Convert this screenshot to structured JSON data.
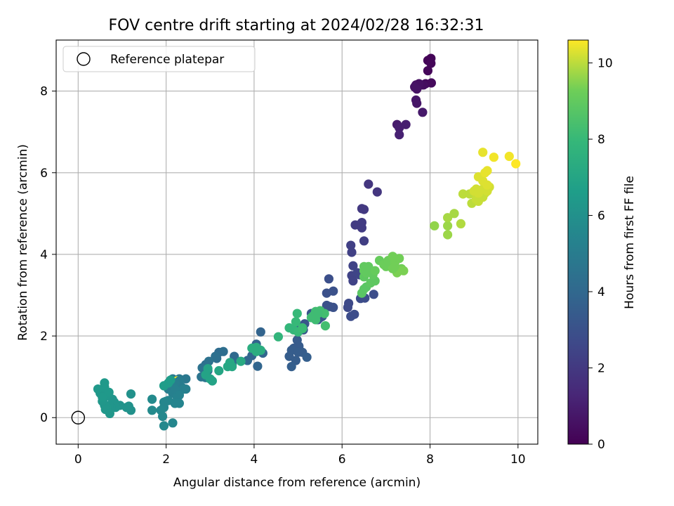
{
  "chart_data": {
    "type": "scatter",
    "title": "FOV centre drift starting at 2024/02/28 16:32:31",
    "xlabel": "Angular distance from reference (arcmin)",
    "ylabel": "Rotation from reference (arcmin)",
    "xlim": [
      -0.5,
      10.45
    ],
    "ylim": [
      -0.65,
      9.25
    ],
    "xticks": [
      0,
      2,
      4,
      6,
      8,
      10
    ],
    "yticks": [
      0,
      2,
      4,
      6,
      8
    ],
    "grid": true,
    "legend": {
      "location": "upper-left",
      "entries": [
        "Reference platepar"
      ]
    },
    "reference_point": {
      "x": 0,
      "y": 0,
      "label": "Reference platepar",
      "marker": "hollow-circle"
    },
    "colorbar": {
      "label": "Hours from first FF file",
      "colormap": "viridis",
      "range": [
        0,
        10.6
      ],
      "ticks": [
        0,
        2,
        4,
        6,
        8,
        10
      ]
    },
    "series": [
      {
        "points": [
          [
            7.95,
            8.75
          ],
          [
            8.02,
            8.8
          ],
          [
            8.02,
            8.68
          ],
          [
            7.95,
            8.5
          ],
          [
            7.9,
            8.18
          ],
          [
            8.03,
            8.2
          ],
          [
            7.85,
            8.15
          ],
          [
            7.8,
            8.15
          ],
          [
            7.75,
            8.18
          ],
          [
            7.68,
            8.15
          ],
          [
            7.65,
            8.1
          ],
          [
            7.7,
            8.05
          ],
          [
            7.68,
            7.78
          ],
          [
            7.7,
            7.7
          ],
          [
            7.83,
            7.48
          ],
          [
            7.25,
            7.18
          ],
          [
            7.3,
            7.1
          ],
          [
            7.45,
            7.18
          ],
          [
            7.3,
            6.93
          ],
          [
            6.6,
            5.72
          ],
          [
            6.8,
            5.53
          ],
          [
            6.45,
            5.12
          ],
          [
            6.5,
            5.1
          ],
          [
            6.3,
            4.72
          ],
          [
            6.45,
            4.65
          ],
          [
            6.45,
            4.78
          ],
          [
            6.5,
            4.33
          ],
          [
            6.2,
            4.22
          ],
          [
            6.22,
            4.05
          ],
          [
            6.25,
            3.72
          ],
          [
            6.22,
            3.48
          ],
          [
            6.25,
            3.35
          ],
          [
            6.35,
            3.55
          ],
          [
            6.4,
            3.5
          ],
          [
            5.7,
            3.4
          ],
          [
            5.65,
            3.05
          ],
          [
            5.8,
            3.1
          ],
          [
            5.65,
            2.75
          ],
          [
            5.72,
            2.72
          ],
          [
            5.8,
            2.7
          ],
          [
            6.15,
            2.8
          ],
          [
            6.13,
            2.7
          ],
          [
            6.2,
            2.48
          ],
          [
            6.28,
            2.53
          ],
          [
            6.42,
            2.92
          ],
          [
            6.52,
            2.93
          ],
          [
            6.72,
            3.02
          ],
          [
            5.45,
            2.4
          ],
          [
            5.55,
            2.48
          ],
          [
            5.3,
            2.55
          ],
          [
            5.5,
            2.45
          ],
          [
            5.35,
            2.45
          ],
          [
            5.15,
            2.3
          ],
          [
            5.05,
            2.2
          ],
          [
            5.12,
            2.15
          ],
          [
            4.98,
            1.9
          ],
          [
            5.02,
            1.75
          ],
          [
            4.9,
            1.7
          ],
          [
            4.85,
            1.65
          ],
          [
            5.0,
            1.6
          ],
          [
            5.1,
            1.6
          ],
          [
            4.8,
            1.5
          ],
          [
            4.95,
            1.4
          ],
          [
            5.2,
            1.48
          ],
          [
            4.85,
            1.25
          ],
          [
            4.15,
            2.1
          ],
          [
            4.05,
            1.8
          ],
          [
            4.0,
            1.62
          ],
          [
            4.2,
            1.58
          ],
          [
            3.95,
            1.52
          ],
          [
            4.08,
            1.26
          ],
          [
            3.85,
            1.4
          ],
          [
            3.55,
            1.5
          ],
          [
            3.5,
            1.35
          ],
          [
            3.5,
            1.3
          ],
          [
            3.2,
            1.6
          ],
          [
            3.3,
            1.62
          ],
          [
            3.15,
            1.45
          ],
          [
            3.12,
            1.5
          ],
          [
            2.9,
            1.3
          ],
          [
            2.97,
            1.38
          ],
          [
            2.82,
            1.22
          ],
          [
            2.95,
            1.15
          ],
          [
            2.8,
            1.0
          ],
          [
            2.9,
            0.98
          ],
          [
            2.45,
            0.95
          ],
          [
            2.3,
            0.95
          ],
          [
            2.15,
            0.95
          ],
          [
            2.25,
            0.9
          ]
        ],
        "hours": [
          0.1,
          0.1,
          0.2,
          0.2,
          0.3,
          0.3,
          0.4,
          0.4,
          0.5,
          0.5,
          0.6,
          0.6,
          0.7,
          0.7,
          0.8,
          0.9,
          1.0,
          1.0,
          1.1,
          1.9,
          1.9,
          2.0,
          2.0,
          2.1,
          2.1,
          2.1,
          2.2,
          2.3,
          2.3,
          2.4,
          2.4,
          2.4,
          2.5,
          2.5,
          2.9,
          3.0,
          3.0,
          3.0,
          3.0,
          3.0,
          2.7,
          2.7,
          2.8,
          2.8,
          2.8,
          2.8,
          2.8,
          3.1,
          3.1,
          3.1,
          3.1,
          3.1,
          3.2,
          3.2,
          3.2,
          3.4,
          3.4,
          3.4,
          3.5,
          3.5,
          3.5,
          3.5,
          3.5,
          3.6,
          3.6,
          3.8,
          3.8,
          3.8,
          3.9,
          3.9,
          3.9,
          4.0,
          4.1,
          4.1,
          4.2,
          4.2,
          4.3,
          4.3,
          4.4,
          4.4,
          4.5,
          4.5,
          4.6,
          4.6,
          4.7,
          4.8,
          4.8,
          4.9
        ]
      },
      {
        "points": [
          [
            2.3,
            0.9
          ],
          [
            2.35,
            0.75
          ],
          [
            2.2,
            0.85
          ],
          [
            2.1,
            0.8
          ],
          [
            2.05,
            0.7
          ],
          [
            2.15,
            0.6
          ],
          [
            2.25,
            0.65
          ],
          [
            2.4,
            0.7
          ],
          [
            2.45,
            0.7
          ],
          [
            2.2,
            0.7
          ],
          [
            2.3,
            0.55
          ],
          [
            2.25,
            0.5
          ],
          [
            2.3,
            0.35
          ],
          [
            2.2,
            0.35
          ],
          [
            2.05,
            0.42
          ],
          [
            2.0,
            0.4
          ],
          [
            1.95,
            0.38
          ],
          [
            1.95,
            0.25
          ],
          [
            1.88,
            0.18
          ],
          [
            1.92,
            0.03
          ],
          [
            1.95,
            -0.2
          ],
          [
            2.15,
            -0.13
          ],
          [
            1.68,
            0.18
          ],
          [
            1.68,
            0.45
          ],
          [
            1.2,
            0.58
          ],
          [
            1.2,
            0.18
          ],
          [
            1.15,
            0.28
          ],
          [
            1.1,
            0.25
          ],
          [
            0.95,
            0.3
          ],
          [
            0.9,
            0.3
          ],
          [
            0.82,
            0.38
          ],
          [
            0.78,
            0.45
          ],
          [
            0.85,
            0.25
          ],
          [
            0.75,
            0.25
          ],
          [
            0.7,
            0.3
          ],
          [
            0.65,
            0.25
          ],
          [
            0.6,
            0.3
          ],
          [
            0.62,
            0.2
          ],
          [
            0.72,
            0.1
          ],
          [
            0.55,
            0.4
          ],
          [
            0.6,
            0.5
          ],
          [
            0.5,
            0.6
          ],
          [
            0.58,
            0.62
          ],
          [
            0.65,
            0.55
          ],
          [
            0.7,
            0.62
          ],
          [
            0.6,
            0.75
          ],
          [
            0.6,
            0.85
          ],
          [
            0.45,
            0.7
          ],
          [
            0.55,
            0.5
          ],
          [
            1.95,
            0.78
          ],
          [
            2.05,
            0.85
          ],
          [
            2.1,
            0.92
          ],
          [
            2.95,
            1.2
          ],
          [
            2.9,
            1.05
          ],
          [
            3.0,
            0.95
          ],
          [
            3.05,
            0.9
          ],
          [
            3.2,
            1.15
          ],
          [
            3.4,
            1.25
          ],
          [
            3.45,
            1.35
          ],
          [
            3.5,
            1.25
          ],
          [
            3.7,
            1.38
          ],
          [
            3.95,
            1.7
          ],
          [
            4.05,
            1.72
          ],
          [
            4.15,
            1.65
          ],
          [
            4.05,
            1.62
          ]
        ],
        "hours": [
          5.0,
          5.0,
          5.1,
          5.1,
          5.1,
          5.2,
          5.2,
          5.2,
          5.2,
          5.2,
          5.3,
          5.3,
          5.4,
          5.4,
          5.4,
          5.5,
          5.5,
          5.5,
          5.6,
          5.6,
          5.6,
          5.5,
          5.7,
          5.7,
          6.0,
          6.0,
          6.0,
          6.1,
          6.1,
          6.1,
          6.2,
          6.2,
          6.2,
          6.2,
          6.2,
          6.3,
          6.3,
          6.3,
          6.3,
          6.3,
          6.3,
          6.3,
          6.3,
          6.3,
          6.4,
          6.4,
          6.4,
          6.4,
          6.4,
          6.6,
          6.6,
          6.6,
          6.9,
          6.9,
          6.9,
          6.9,
          7.0,
          7.1,
          7.1,
          7.1,
          7.2,
          7.4,
          7.4,
          7.4,
          7.4
        ]
      },
      {
        "points": [
          [
            4.55,
            1.98
          ],
          [
            4.8,
            2.2
          ],
          [
            4.9,
            2.15
          ],
          [
            5.0,
            2.1
          ],
          [
            4.95,
            2.35
          ],
          [
            4.98,
            2.55
          ],
          [
            5.1,
            2.18
          ],
          [
            5.1,
            2.2
          ],
          [
            5.3,
            2.45
          ],
          [
            5.4,
            2.4
          ],
          [
            5.4,
            2.6
          ],
          [
            5.5,
            2.62
          ],
          [
            5.6,
            2.55
          ],
          [
            5.62,
            2.25
          ],
          [
            5.35,
            2.5
          ],
          [
            5.45,
            2.55
          ],
          [
            6.45,
            3.05
          ],
          [
            6.5,
            3.15
          ],
          [
            6.55,
            3.2
          ],
          [
            6.65,
            3.3
          ],
          [
            6.75,
            3.35
          ],
          [
            6.5,
            3.45
          ],
          [
            6.55,
            3.55
          ],
          [
            6.5,
            3.6
          ],
          [
            6.5,
            3.7
          ],
          [
            6.6,
            3.7
          ],
          [
            6.7,
            3.5
          ],
          [
            6.75,
            3.6
          ],
          [
            6.85,
            3.85
          ],
          [
            6.95,
            3.75
          ],
          [
            7.0,
            3.7
          ],
          [
            7.05,
            3.85
          ],
          [
            7.1,
            3.8
          ],
          [
            7.2,
            3.8
          ],
          [
            7.15,
            3.95
          ],
          [
            7.3,
            3.9
          ],
          [
            7.35,
            3.65
          ],
          [
            7.4,
            3.6
          ],
          [
            7.3,
            3.6
          ],
          [
            7.25,
            3.55
          ],
          [
            7.2,
            3.7
          ],
          [
            7.15,
            3.65
          ]
        ],
        "hours": [
          7.8,
          7.9,
          7.9,
          8.0,
          8.0,
          8.0,
          8.1,
          8.1,
          8.2,
          8.2,
          8.2,
          8.3,
          8.3,
          8.3,
          8.2,
          8.2,
          8.8,
          8.8,
          8.8,
          8.9,
          8.9,
          8.9,
          9.0,
          9.0,
          9.0,
          9.0,
          9.0,
          9.1,
          9.1,
          9.2,
          9.2,
          9.2,
          9.2,
          9.3,
          9.3,
          9.3,
          9.3,
          9.4,
          9.4,
          9.4,
          9.3,
          9.3
        ]
      },
      {
        "points": [
          [
            8.1,
            4.7
          ],
          [
            8.4,
            4.48
          ],
          [
            8.4,
            4.7
          ],
          [
            8.4,
            4.9
          ],
          [
            8.55,
            5.0
          ],
          [
            8.7,
            4.75
          ],
          [
            8.75,
            5.48
          ],
          [
            8.9,
            5.48
          ],
          [
            8.95,
            5.25
          ],
          [
            9.05,
            5.35
          ],
          [
            9.1,
            5.3
          ],
          [
            9.15,
            5.45
          ],
          [
            9.2,
            5.4
          ],
          [
            9.25,
            5.5
          ],
          [
            9.0,
            5.55
          ],
          [
            9.05,
            5.6
          ],
          [
            9.1,
            5.5
          ],
          [
            9.2,
            5.6
          ],
          [
            9.3,
            5.55
          ],
          [
            9.35,
            5.65
          ],
          [
            9.3,
            5.7
          ],
          [
            9.2,
            5.8
          ],
          [
            9.1,
            5.9
          ],
          [
            9.25,
            6.0
          ],
          [
            9.3,
            6.05
          ],
          [
            9.2,
            6.5
          ],
          [
            9.45,
            6.38
          ],
          [
            9.8,
            6.4
          ],
          [
            9.95,
            6.22
          ]
        ],
        "hours": [
          9.6,
          9.7,
          9.7,
          9.8,
          9.8,
          9.9,
          10.0,
          10.0,
          10.0,
          10.1,
          10.1,
          10.1,
          10.1,
          10.1,
          10.2,
          10.2,
          10.2,
          10.2,
          10.2,
          10.2,
          10.3,
          10.3,
          10.3,
          10.4,
          10.4,
          10.4,
          10.5,
          10.5,
          10.6
        ]
      }
    ]
  }
}
